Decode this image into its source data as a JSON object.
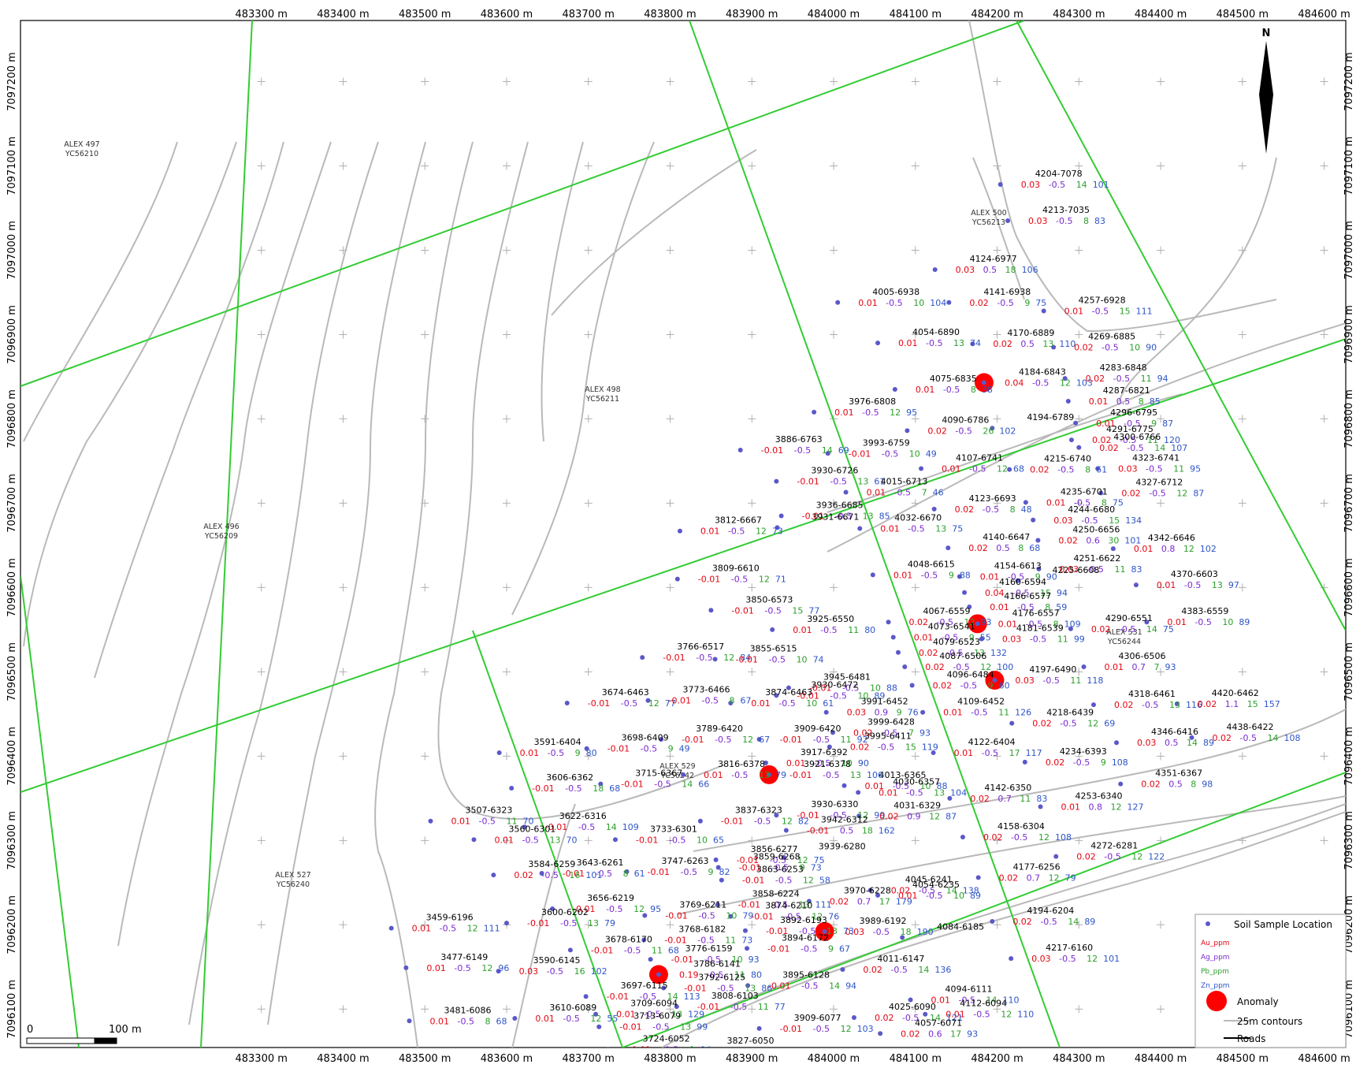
{
  "map": {
    "x_ticks": [
      "483300 m",
      "483400 m",
      "483500 m",
      "483600 m",
      "483700 m",
      "483800 m",
      "483900 m",
      "484000 m",
      "484100 m",
      "484200 m",
      "484300 m",
      "484400 m",
      "484500 m",
      "484600 m"
    ],
    "y_ticks": [
      "7097200 m",
      "7097100 m",
      "7097000 m",
      "7096900 m",
      "7096800 m",
      "7096700 m",
      "7096600 m",
      "7096500 m",
      "7096400 m",
      "7096300 m",
      "7096200 m",
      "7096100 m"
    ],
    "north_label": "N",
    "scale": {
      "zero": "0",
      "length": "100 m"
    },
    "colors": {
      "au": "#e30613",
      "ag": "#7a2bd0",
      "pb": "#2ca02c",
      "zn": "#2f55c8",
      "sample": "#5b58c9",
      "anomaly": "#ff0000",
      "claim": "#33cc33",
      "contour": "#b9b9b9"
    }
  },
  "claims": [
    {
      "name": "ALEX 497",
      "code": "YC56210"
    },
    {
      "name": "ALEX 500",
      "code": "YC56213"
    },
    {
      "name": "ALEX 498",
      "code": "YC56211"
    },
    {
      "name": "ALEX 496",
      "code": "YC56209"
    },
    {
      "name": "ALEX 531",
      "code": "YC56244"
    },
    {
      "name": "ALEX 529",
      "code": "YC56242"
    },
    {
      "name": "ALEX 527",
      "code": "YC56240"
    }
  ],
  "samples": [
    {
      "id": "4204-7078",
      "au": "0.03",
      "ag": "-0.5",
      "pb": "14",
      "zn": "101"
    },
    {
      "id": "4213-7035",
      "au": "0.03",
      "ag": "-0.5",
      "pb": "8",
      "zn": "83"
    },
    {
      "id": "4124-6977",
      "au": "0.03",
      "ag": "0.5",
      "pb": "18",
      "zn": "106"
    },
    {
      "id": "4005-6938",
      "au": "0.01",
      "ag": "-0.5",
      "pb": "10",
      "zn": "104"
    },
    {
      "id": "4141-6938",
      "au": "0.02",
      "ag": "-0.5",
      "pb": "9",
      "zn": "75"
    },
    {
      "id": "4257-6928",
      "au": "0.01",
      "ag": "-0.5",
      "pb": "15",
      "zn": "111"
    },
    {
      "id": "4054-6890",
      "au": "0.01",
      "ag": "-0.5",
      "pb": "13",
      "zn": "74"
    },
    {
      "id": "4170-6889",
      "au": "0.02",
      "ag": "0.5",
      "pb": "13",
      "zn": "110"
    },
    {
      "id": "4269-6885",
      "au": "0.02",
      "ag": "-0.5",
      "pb": "10",
      "zn": "90"
    },
    {
      "id": "4184-6843",
      "au": "0.04",
      "ag": "-0.5",
      "pb": "12",
      "zn": "103"
    },
    {
      "id": "4283-6848",
      "au": "0.02",
      "ag": "-0.5",
      "pb": "11",
      "zn": "94"
    },
    {
      "id": "4075-6835",
      "au": "0.01",
      "ag": "-0.5",
      "pb": "8",
      "zn": "38"
    },
    {
      "id": "4287-6821",
      "au": "0.01",
      "ag": "0.5",
      "pb": "8",
      "zn": "85"
    },
    {
      "id": "3976-6808",
      "au": "0.01",
      "ag": "-0.5",
      "pb": "12",
      "zn": "95"
    },
    {
      "id": "4296-6795",
      "au": "0.01",
      "ag": "-0.5",
      "pb": "9",
      "zn": "87"
    },
    {
      "id": "4090-6786",
      "au": "0.02",
      "ag": "-0.5",
      "pb": "26",
      "zn": "102"
    },
    {
      "id": "4194-6789",
      "au": "",
      "ag": "",
      "pb": "",
      "zn": ""
    },
    {
      "id": "4291-6775",
      "au": "0.02",
      "ag": "-0.5",
      "pb": "11",
      "zn": "120"
    },
    {
      "id": "3886-6763",
      "au": "-0.01",
      "ag": "-0.5",
      "pb": "14",
      "zn": "69"
    },
    {
      "id": "3993-6759",
      "au": "-0.01",
      "ag": "-0.5",
      "pb": "10",
      "zn": "49"
    },
    {
      "id": "4300-6766",
      "au": "0.02",
      "ag": "-0.5",
      "pb": "14",
      "zn": "107"
    },
    {
      "id": "3930-6726",
      "au": "-0.01",
      "ag": "-0.5",
      "pb": "13",
      "zn": "61"
    },
    {
      "id": "4107-6741",
      "au": "0.01",
      "ag": "-0.5",
      "pb": "12",
      "zn": "68"
    },
    {
      "id": "4215-6740",
      "au": "0.02",
      "ag": "-0.5",
      "pb": "8",
      "zn": "61"
    },
    {
      "id": "4323-6741",
      "au": "0.03",
      "ag": "-0.5",
      "pb": "11",
      "zn": "95"
    },
    {
      "id": "4015-6713",
      "au": "0.01",
      "ag": "-0.5",
      "pb": "7",
      "zn": "46"
    },
    {
      "id": "4235-6701",
      "au": "0.01",
      "ag": "-0.5",
      "pb": "8",
      "zn": "75"
    },
    {
      "id": "4327-6712",
      "au": "0.02",
      "ag": "-0.5",
      "pb": "12",
      "zn": "87"
    },
    {
      "id": "4123-6693",
      "au": "0.02",
      "ag": "-0.5",
      "pb": "8",
      "zn": "48"
    },
    {
      "id": "3936-6685",
      "au": "-0.01",
      "ag": "-0.5",
      "pb": "13",
      "zn": "85"
    },
    {
      "id": "4244-6680",
      "au": "0.03",
      "ag": "-0.5",
      "pb": "15",
      "zn": "134"
    },
    {
      "id": "3812-6667",
      "au": "0.01",
      "ag": "-0.5",
      "pb": "12",
      "zn": "73"
    },
    {
      "id": "4032-6670",
      "au": "0.01",
      "ag": "-0.5",
      "pb": "13",
      "zn": "75"
    },
    {
      "id": "3931-6671",
      "au": "",
      "ag": "",
      "pb": "",
      "zn": ""
    },
    {
      "id": "4250-6656",
      "au": "0.02",
      "ag": "0.6",
      "pb": "30",
      "zn": "101"
    },
    {
      "id": "4140-6647",
      "au": "0.02",
      "ag": "0.5",
      "pb": "8",
      "zn": "68"
    },
    {
      "id": "4342-6646",
      "au": "0.01",
      "ag": "0.8",
      "pb": "12",
      "zn": "102"
    },
    {
      "id": "4154-6613",
      "au": "0.01",
      "ag": "-0.5",
      "pb": "9",
      "zn": "90"
    },
    {
      "id": "4251-6622",
      "au": "0.03",
      "ag": "-0.5",
      "pb": "11",
      "zn": "83"
    },
    {
      "id": "4048-6615",
      "au": "0.01",
      "ag": "-0.5",
      "pb": "9",
      "zn": "88"
    },
    {
      "id": "3809-6610",
      "au": "-0.01",
      "ag": "-0.5",
      "pb": "12",
      "zn": "71"
    },
    {
      "id": "4225-6608",
      "au": "",
      "ag": "",
      "pb": "",
      "zn": ""
    },
    {
      "id": "4370-6603",
      "au": "0.01",
      "ag": "-0.5",
      "pb": "13",
      "zn": "97"
    },
    {
      "id": "4160-6594",
      "au": "0.04",
      "ag": "-0.5",
      "pb": "15",
      "zn": "94"
    },
    {
      "id": "3850-6573",
      "au": "-0.01",
      "ag": "-0.5",
      "pb": "15",
      "zn": "77"
    },
    {
      "id": "4067-6559",
      "au": "0.02",
      "ag": "-0.5",
      "pb": "12",
      "zn": "93"
    },
    {
      "id": "4166-6577",
      "au": "0.01",
      "ag": "-0.5",
      "pb": "8",
      "zn": "59"
    },
    {
      "id": "4290-6551",
      "au": "0.02",
      "ag": "-0.5",
      "pb": "14",
      "zn": "75"
    },
    {
      "id": "4383-6559",
      "au": "0.01",
      "ag": "-0.5",
      "pb": "10",
      "zn": "89"
    },
    {
      "id": "3925-6550",
      "au": "0.01",
      "ag": "-0.5",
      "pb": "11",
      "zn": "80"
    },
    {
      "id": "4073-6541",
      "au": "0.01",
      "ag": "-0.5",
      "pb": "9",
      "zn": "55"
    },
    {
      "id": "4176-6557",
      "au": "0.01",
      "ag": "-0.5",
      "pb": "8",
      "zn": "109"
    },
    {
      "id": "4079-6523",
      "au": "0.02",
      "ag": "-0.5",
      "pb": "13",
      "zn": "132"
    },
    {
      "id": "4181-6539",
      "au": "0.03",
      "ag": "-0.5",
      "pb": "11",
      "zn": "99"
    },
    {
      "id": "3766-6517",
      "au": "-0.01",
      "ag": "-0.5",
      "pb": "12",
      "zn": "84"
    },
    {
      "id": "3855-6515",
      "au": "-0.01",
      "ag": "-0.5",
      "pb": "10",
      "zn": "74"
    },
    {
      "id": "4087-6506",
      "au": "0.02",
      "ag": "-0.5",
      "pb": "12",
      "zn": "100"
    },
    {
      "id": "4306-6506",
      "au": "0.01",
      "ag": "0.7",
      "pb": "7",
      "zn": "93"
    },
    {
      "id": "3945-6481",
      "au": "-0.01",
      "ag": "-0.5",
      "pb": "10",
      "zn": "88"
    },
    {
      "id": "4197-6490",
      "au": "0.03",
      "ag": "-0.5",
      "pb": "11",
      "zn": "118"
    },
    {
      "id": "4096-6484",
      "au": "0.02",
      "ag": "-0.5",
      "pb": "9",
      "zn": "60"
    },
    {
      "id": "3930-6472",
      "au": "-0.01",
      "ag": "-0.5",
      "pb": "10",
      "zn": "89"
    },
    {
      "id": "3674-6463",
      "au": "-0.01",
      "ag": "-0.5",
      "pb": "12",
      "zn": "77"
    },
    {
      "id": "3773-6466",
      "au": "-0.01",
      "ag": "-0.5",
      "pb": "8",
      "zn": "67"
    },
    {
      "id": "3874-6463",
      "au": "0.01",
      "ag": "-0.5",
      "pb": "10",
      "zn": "61"
    },
    {
      "id": "3991-6452",
      "au": "0.03",
      "ag": "0.9",
      "pb": "9",
      "zn": "76"
    },
    {
      "id": "4109-6452",
      "au": "0.01",
      "ag": "-0.5",
      "pb": "11",
      "zn": "126"
    },
    {
      "id": "4318-6461",
      "au": "0.02",
      "ag": "-0.5",
      "pb": "13",
      "zn": "116"
    },
    {
      "id": "4420-6462",
      "au": "0.02",
      "ag": "1.1",
      "pb": "15",
      "zn": "157"
    },
    {
      "id": "4218-6439",
      "au": "0.02",
      "ag": "-0.5",
      "pb": "12",
      "zn": "69"
    },
    {
      "id": "3999-6428",
      "au": "0.02",
      "ag": "-0.5",
      "pb": "7",
      "zn": "93"
    },
    {
      "id": "3789-6420",
      "au": "-0.01",
      "ag": "-0.5",
      "pb": "12",
      "zn": "67"
    },
    {
      "id": "3909-6420",
      "au": "-0.01",
      "ag": "-0.5",
      "pb": "11",
      "zn": "92"
    },
    {
      "id": "4438-6422",
      "au": "0.02",
      "ag": "-0.5",
      "pb": "14",
      "zn": "108"
    },
    {
      "id": "4346-6416",
      "au": "0.03",
      "ag": "0.5",
      "pb": "14",
      "zn": "89"
    },
    {
      "id": "3591-6404",
      "au": "0.01",
      "ag": "-0.5",
      "pb": "9",
      "zn": "80"
    },
    {
      "id": "3698-6409",
      "au": "-0.01",
      "ag": "-0.5",
      "pb": "9",
      "zn": "49"
    },
    {
      "id": "4122-6404",
      "au": "0.01",
      "ag": "-0.5",
      "pb": "17",
      "zn": "117"
    },
    {
      "id": "3995-6411",
      "au": "0.02",
      "ag": "-0.5",
      "pb": "15",
      "zn": "119"
    },
    {
      "id": "4234-6393",
      "au": "0.02",
      "ag": "-0.5",
      "pb": "9",
      "zn": "108"
    },
    {
      "id": "3917-6392",
      "au": "0.01",
      "ag": "-0.5",
      "pb": "10",
      "zn": "90"
    },
    {
      "id": "4013-6365",
      "au": "0.01",
      "ag": "-0.5",
      "pb": "10",
      "zn": "88"
    },
    {
      "id": "3816-6378",
      "au": "0.01",
      "ag": "-0.5",
      "pb": "13",
      "zn": "79"
    },
    {
      "id": "3921-6378",
      "au": "-0.01",
      "ag": "-0.5",
      "pb": "13",
      "zn": "106"
    },
    {
      "id": "4351-6367",
      "au": "0.02",
      "ag": "0.5",
      "pb": "8",
      "zn": "98"
    },
    {
      "id": "3606-6362",
      "au": "-0.01",
      "ag": "-0.5",
      "pb": "18",
      "zn": "68"
    },
    {
      "id": "3715-6367",
      "au": "-0.01",
      "ag": "-0.5",
      "pb": "14",
      "zn": "66"
    },
    {
      "id": "4030-6357",
      "au": "0.01",
      "ag": "-0.5",
      "pb": "13",
      "zn": "104"
    },
    {
      "id": "4142-6350",
      "au": "0.02",
      "ag": "0.7",
      "pb": "11",
      "zn": "83"
    },
    {
      "id": "4253-6340",
      "au": "0.01",
      "ag": "0.8",
      "pb": "12",
      "zn": "127"
    },
    {
      "id": "3507-6323",
      "au": "0.01",
      "ag": "-0.5",
      "pb": "11",
      "zn": "70"
    },
    {
      "id": "3930-6330",
      "au": "-0.01",
      "ag": "-0.5",
      "pb": "12",
      "zn": "99"
    },
    {
      "id": "4031-6329",
      "au": "0.02",
      "ag": "0.9",
      "pb": "12",
      "zn": "87"
    },
    {
      "id": "3837-6323",
      "au": "-0.01",
      "ag": "-0.5",
      "pb": "12",
      "zn": "82"
    },
    {
      "id": "3622-6316",
      "au": "-0.01",
      "ag": "-0.5",
      "pb": "14",
      "zn": "109"
    },
    {
      "id": "3942-6312",
      "au": "-0.01",
      "ag": "0.5",
      "pb": "18",
      "zn": "162"
    },
    {
      "id": "3733-6301",
      "au": "-0.01",
      "ag": "-0.5",
      "pb": "10",
      "zn": "65"
    },
    {
      "id": "4158-6304",
      "au": "0.02",
      "ag": "-0.5",
      "pb": "12",
      "zn": "108"
    },
    {
      "id": "3560-6301",
      "au": "0.01",
      "ag": "-0.5",
      "pb": "13",
      "zn": "70"
    },
    {
      "id": "3856-6277",
      "au": "-0.01",
      "ag": "-0.5",
      "pb": "12",
      "zn": "75"
    },
    {
      "id": "4272-6281",
      "au": "0.02",
      "ag": "-0.5",
      "pb": "12",
      "zn": "122"
    },
    {
      "id": "3939-6280",
      "au": "",
      "ag": "",
      "pb": "",
      "zn": ""
    },
    {
      "id": "3643-6261",
      "au": "-0.01",
      "ag": "-0.5",
      "pb": "8",
      "zn": "61"
    },
    {
      "id": "3747-6263",
      "au": "-0.01",
      "ag": "-0.5",
      "pb": "9",
      "zn": "82"
    },
    {
      "id": "3859-6268",
      "au": "-0.01",
      "ag": "-0.5",
      "pb": "9",
      "zn": "73"
    },
    {
      "id": "4045-6241",
      "au": "0.02",
      "ag": "-0.5",
      "pb": "14",
      "zn": "138"
    },
    {
      "id": "3584-6259",
      "au": "0.02",
      "ag": "-0.5",
      "pb": "16",
      "zn": "101"
    },
    {
      "id": "4177-6256",
      "au": "0.02",
      "ag": "0.7",
      "pb": "12",
      "zn": "79"
    },
    {
      "id": "3863-6253",
      "au": "-0.01",
      "ag": "-0.5",
      "pb": "12",
      "zn": "58"
    },
    {
      "id": "3970-6228",
      "au": "0.02",
      "ag": "0.7",
      "pb": "17",
      "zn": "179"
    },
    {
      "id": "4054-6235",
      "au": "0.01",
      "ag": "-0.5",
      "pb": "10",
      "zn": "89"
    },
    {
      "id": "3656-6219",
      "au": "-0.01",
      "ag": "-0.5",
      "pb": "12",
      "zn": "95"
    },
    {
      "id": "3858-6224",
      "au": "-0.01",
      "ag": "-0.5",
      "pb": "13",
      "zn": "111"
    },
    {
      "id": "3769-6211",
      "au": "-0.01",
      "ag": "-0.5",
      "pb": "10",
      "zn": "79"
    },
    {
      "id": "3874-6210",
      "au": "-0.01",
      "ag": "-0.5",
      "pb": "12",
      "zn": "76"
    },
    {
      "id": "3989-6192",
      "au": "0.03",
      "ag": "-0.5",
      "pb": "18",
      "zn": "190"
    },
    {
      "id": "4194-6204",
      "au": "0.02",
      "ag": "-0.5",
      "pb": "14",
      "zn": "89"
    },
    {
      "id": "3459-6196",
      "au": "0.01",
      "ag": "-0.5",
      "pb": "12",
      "zn": "111"
    },
    {
      "id": "3600-6202",
      "au": "-0.01",
      "ag": "-0.5",
      "pb": "13",
      "zn": "79"
    },
    {
      "id": "4084-6185",
      "au": "",
      "ag": "",
      "pb": "",
      "zn": ""
    },
    {
      "id": "3768-6182",
      "au": "-0.01",
      "ag": "-0.5",
      "pb": "11",
      "zn": "73"
    },
    {
      "id": "3892-6193",
      "au": "-0.01",
      "ag": "-0.5",
      "pb": "13",
      "zn": "73"
    },
    {
      "id": "3678-6170",
      "au": "-0.01",
      "ag": "-0.5",
      "pb": "11",
      "zn": "68"
    },
    {
      "id": "3776-6159",
      "au": "-0.01",
      "ag": "-0.5",
      "pb": "10",
      "zn": "93"
    },
    {
      "id": "3894-6172",
      "au": "-0.01",
      "ag": "-0.5",
      "pb": "9",
      "zn": "67"
    },
    {
      "id": "4217-6160",
      "au": "0.03",
      "ag": "-0.5",
      "pb": "12",
      "zn": "101"
    },
    {
      "id": "3477-6149",
      "au": "0.01",
      "ag": "-0.5",
      "pb": "12",
      "zn": "96"
    },
    {
      "id": "3590-6145",
      "au": "0.03",
      "ag": "-0.5",
      "pb": "16",
      "zn": "102"
    },
    {
      "id": "4011-6147",
      "au": "0.02",
      "ag": "-0.5",
      "pb": "14",
      "zn": "136"
    },
    {
      "id": "3786-6141",
      "au": "0.19",
      "ag": "-0.5",
      "pb": "11",
      "zn": "80"
    },
    {
      "id": "3895-6128",
      "au": "-0.01",
      "ag": "-0.5",
      "pb": "14",
      "zn": "94"
    },
    {
      "id": "4094-6111",
      "au": "0.01",
      "ag": "-0.5",
      "pb": "14",
      "zn": "110"
    },
    {
      "id": "3697-6115",
      "au": "-0.01",
      "ag": "-0.5",
      "pb": "14",
      "zn": "113"
    },
    {
      "id": "3792-6125",
      "au": "-0.01",
      "ag": "-0.5",
      "pb": "13",
      "zn": "86"
    },
    {
      "id": "4112-6094",
      "au": "0.01",
      "ag": "-0.5",
      "pb": "12",
      "zn": "110"
    },
    {
      "id": "3481-6086",
      "au": "0.01",
      "ag": "-0.5",
      "pb": "8",
      "zn": "68"
    },
    {
      "id": "3610-6089",
      "au": "0.01",
      "ag": "-0.5",
      "pb": "12",
      "zn": "55"
    },
    {
      "id": "3709-6094",
      "au": "0.01",
      "ag": "-0.5",
      "pb": "13",
      "zn": "129"
    },
    {
      "id": "3808-6103",
      "au": "-0.01",
      "ag": "-0.5",
      "pb": "11",
      "zn": "77"
    },
    {
      "id": "3909-6077",
      "au": "-0.01",
      "ag": "-0.5",
      "pb": "12",
      "zn": "103"
    },
    {
      "id": "4025-6090",
      "au": "0.02",
      "ag": "-0.5",
      "pb": "14",
      "zn": "121"
    },
    {
      "id": "3713-6079",
      "au": "-0.01",
      "ag": "-0.5",
      "pb": "13",
      "zn": "99"
    },
    {
      "id": "4057-6071",
      "au": "0.02",
      "ag": "0.6",
      "pb": "17",
      "zn": "93"
    },
    {
      "id": "3724-6052",
      "au": "-0.01",
      "ag": "-0.5",
      "pb": "8",
      "zn": "94"
    },
    {
      "id": "3827-6050",
      "au": "-0.01",
      "ag": "-0.5",
      "pb": "10",
      "zn": "91"
    }
  ],
  "anomalies": [
    "4184-6843",
    "4176-6557",
    "4197-6490",
    "3921-6378",
    "3989-6192",
    "3786-6141"
  ],
  "legend": {
    "sample": "Soil Sample Location",
    "au": "Au_ppm",
    "ag": "Ag_ppm",
    "pb": "Pb_ppm",
    "zn": "Zn_ppm",
    "anomaly": "Anomaly",
    "contours": "25m contours",
    "roads": "Roads"
  }
}
